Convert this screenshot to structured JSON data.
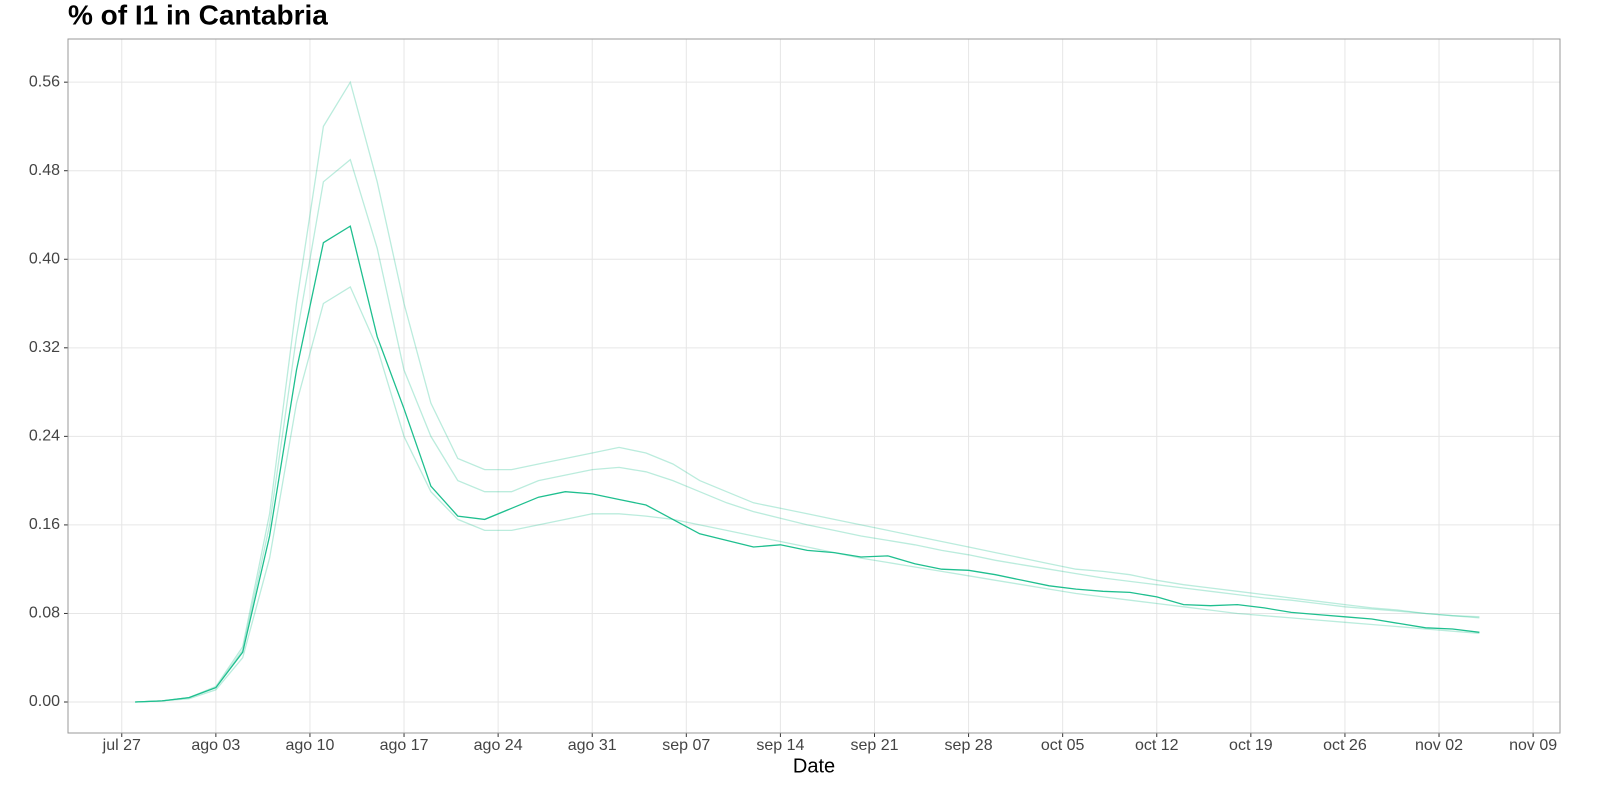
{
  "chart_data": {
    "type": "line",
    "title": "% of I1 in  Cantabria",
    "x_label": "Date",
    "x": [
      "jul 28",
      "jul 30",
      "ago 01",
      "ago 03",
      "ago 05",
      "ago 07",
      "ago 09",
      "ago 11",
      "ago 13",
      "ago 15",
      "ago 17",
      "ago 19",
      "ago 21",
      "ago 23",
      "ago 25",
      "ago 27",
      "ago 29",
      "ago 31",
      "sep 02",
      "sep 04",
      "sep 06",
      "sep 08",
      "sep 10",
      "sep 12",
      "sep 14",
      "sep 16",
      "sep 18",
      "sep 20",
      "sep 22",
      "sep 24",
      "sep 26",
      "sep 28",
      "sep 30",
      "oct 02",
      "oct 04",
      "oct 06",
      "oct 08",
      "oct 10",
      "oct 12",
      "oct 14",
      "oct 16",
      "oct 18",
      "oct 20",
      "oct 22",
      "oct 24",
      "oct 26",
      "oct 28",
      "oct 30",
      "nov 01",
      "nov 03",
      "nov 05"
    ],
    "series": [
      {
        "color": "rgba(31,191,143,0.3)",
        "values": [
          0,
          0.001,
          0.004,
          0.014,
          0.05,
          0.17,
          0.36,
          0.52,
          0.56,
          0.47,
          0.36,
          0.27,
          0.22,
          0.21,
          0.21,
          0.215,
          0.22,
          0.225,
          0.23,
          0.225,
          0.215,
          0.2,
          0.19,
          0.18,
          0.175,
          0.17,
          0.165,
          0.16,
          0.155,
          0.15,
          0.145,
          0.14,
          0.135,
          0.13,
          0.125,
          0.12,
          0.118,
          0.115,
          0.11,
          0.106,
          0.103,
          0.1,
          0.097,
          0.094,
          0.091,
          0.088,
          0.085,
          0.083,
          0.08,
          0.078,
          0.077
        ]
      },
      {
        "color": "rgba(31,191,143,0.3)",
        "values": [
          0,
          0.001,
          0.003,
          0.011,
          0.04,
          0.13,
          0.27,
          0.36,
          0.375,
          0.32,
          0.24,
          0.19,
          0.165,
          0.155,
          0.155,
          0.16,
          0.165,
          0.17,
          0.17,
          0.168,
          0.165,
          0.16,
          0.155,
          0.15,
          0.145,
          0.14,
          0.135,
          0.13,
          0.126,
          0.122,
          0.118,
          0.114,
          0.11,
          0.106,
          0.102,
          0.098,
          0.095,
          0.092,
          0.089,
          0.086,
          0.083,
          0.08,
          0.078,
          0.076,
          0.074,
          0.072,
          0.07,
          0.068,
          0.066,
          0.064,
          0.062
        ]
      },
      {
        "color": "rgba(31,191,143,0.3)",
        "values": [
          0,
          0.001,
          0.004,
          0.013,
          0.047,
          0.16,
          0.33,
          0.47,
          0.49,
          0.41,
          0.3,
          0.24,
          0.2,
          0.19,
          0.19,
          0.2,
          0.205,
          0.21,
          0.212,
          0.208,
          0.2,
          0.19,
          0.18,
          0.172,
          0.166,
          0.16,
          0.155,
          0.15,
          0.146,
          0.142,
          0.137,
          0.133,
          0.128,
          0.124,
          0.12,
          0.116,
          0.112,
          0.109,
          0.106,
          0.103,
          0.1,
          0.097,
          0.094,
          0.092,
          0.089,
          0.086,
          0.084,
          0.082,
          0.08,
          0.078,
          0.076
        ]
      },
      {
        "color": "#1fbf8f",
        "values": [
          0,
          0.001,
          0.004,
          0.013,
          0.045,
          0.15,
          0.3,
          0.415,
          0.43,
          0.33,
          0.265,
          0.195,
          0.168,
          0.165,
          0.175,
          0.185,
          0.19,
          0.188,
          0.183,
          0.178,
          0.165,
          0.152,
          0.146,
          0.14,
          0.142,
          0.137,
          0.135,
          0.131,
          0.132,
          0.125,
          0.12,
          0.119,
          0.115,
          0.11,
          0.105,
          0.102,
          0.1,
          0.099,
          0.095,
          0.088,
          0.087,
          0.088,
          0.085,
          0.081,
          0.079,
          0.077,
          0.075,
          0.071,
          0.067,
          0.066,
          0.063
        ]
      }
    ],
    "xlim": [
      "jul 23",
      "nov 11"
    ],
    "xticks": [
      "jul 27",
      "ago 03",
      "ago 10",
      "ago 17",
      "ago 24",
      "ago 31",
      "sep 07",
      "sep 14",
      "sep 21",
      "sep 28",
      "oct 05",
      "oct 12",
      "oct 19",
      "oct 26",
      "nov 02",
      "nov 09"
    ],
    "ylim": [
      -0.028,
      0.599
    ],
    "yticks": [
      {
        "value": 0,
        "label": "0.00"
      },
      0.08,
      0.16,
      0.24,
      0.32,
      {
        "value": 0.4,
        "label": "0.40"
      },
      0.48,
      0.56
    ],
    "grid": true
  }
}
